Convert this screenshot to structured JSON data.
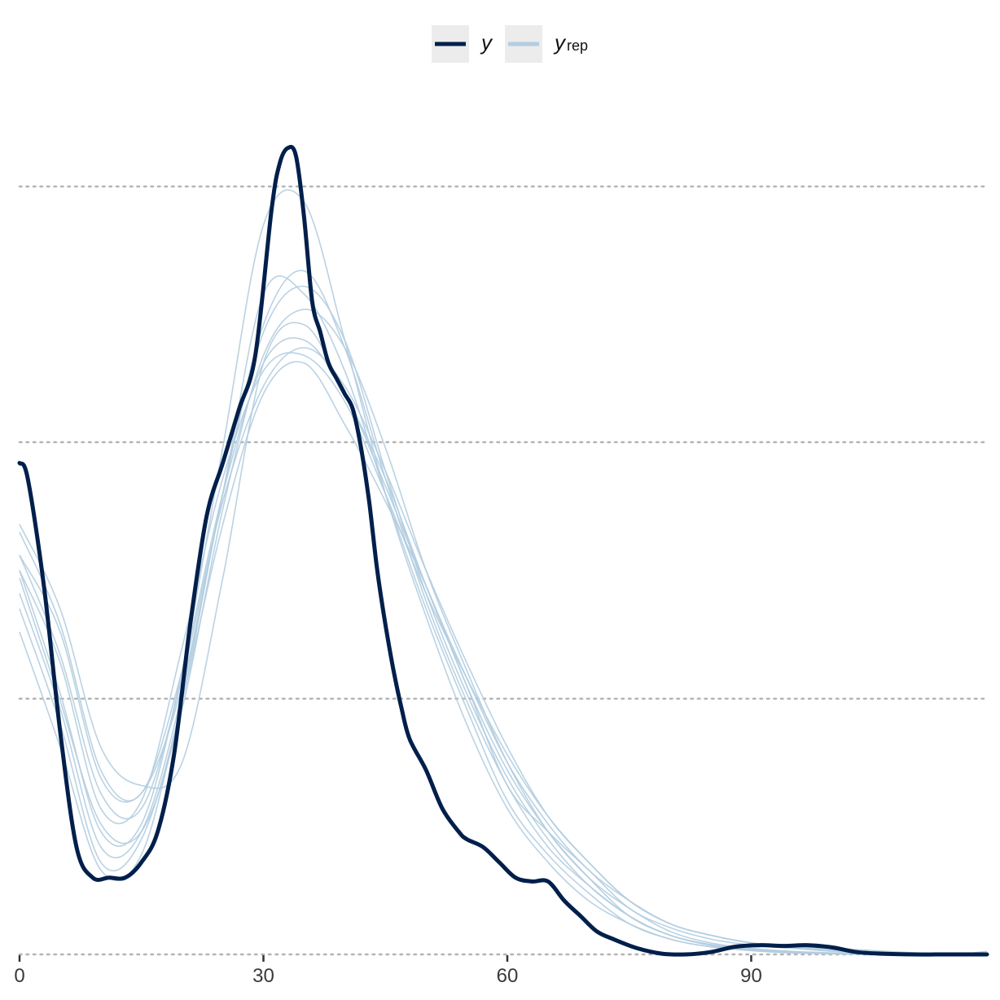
{
  "chart_data": {
    "type": "line",
    "title": "",
    "xlabel": "",
    "ylabel": "",
    "xlim": [
      0,
      119
    ],
    "x_ticks": [
      0,
      30,
      60,
      90
    ],
    "x_tick_labels": [
      "0",
      "30",
      "60",
      "90"
    ],
    "ylim": [
      0,
      1.05
    ],
    "y_gridlines": [
      0,
      0.333,
      0.667,
      1.0
    ],
    "grid": "horizontal dotted",
    "legend_position": "top",
    "colors": {
      "y": "#011f4b",
      "y_rep": "#b3cde0",
      "grid": "#b4b4b4",
      "legend_key_bg": "#ececec"
    },
    "legend": [
      {
        "key": "y",
        "label": "y",
        "sub": ""
      },
      {
        "key": "y_rep",
        "label": "y",
        "sub": "rep"
      }
    ],
    "series": [
      {
        "name": "y",
        "x": [
          0,
          1,
          3,
          5,
          7,
          9,
          11,
          13,
          15,
          17,
          19,
          21,
          23,
          25,
          27,
          29,
          31,
          32,
          33,
          34,
          35,
          36,
          37,
          38,
          39,
          40,
          41,
          42,
          43,
          44,
          45,
          46,
          47,
          48,
          50,
          52,
          54,
          55,
          57,
          59,
          61,
          63,
          65,
          67,
          69,
          71,
          73,
          76,
          79,
          82,
          85,
          88,
          91,
          94,
          97,
          100,
          103,
          106,
          110,
          114,
          119
        ],
        "y": [
          0.64,
          0.62,
          0.48,
          0.29,
          0.14,
          0.1,
          0.1,
          0.1,
          0.12,
          0.16,
          0.26,
          0.43,
          0.57,
          0.64,
          0.71,
          0.78,
          0.97,
          1.03,
          1.05,
          1.04,
          0.96,
          0.85,
          0.81,
          0.77,
          0.75,
          0.73,
          0.71,
          0.66,
          0.59,
          0.5,
          0.43,
          0.37,
          0.32,
          0.28,
          0.24,
          0.19,
          0.16,
          0.15,
          0.14,
          0.12,
          0.1,
          0.095,
          0.095,
          0.07,
          0.05,
          0.03,
          0.02,
          0.008,
          0.001,
          0,
          0.003,
          0.01,
          0.012,
          0.011,
          0.012,
          0.009,
          0.003,
          0.001,
          0,
          0,
          0
        ]
      },
      {
        "name": "",
        "x": [
          0,
          5,
          10,
          15,
          20,
          25,
          30,
          35,
          40,
          45,
          50,
          55,
          60,
          65,
          70,
          75,
          80,
          85,
          90,
          95,
          100,
          105,
          110,
          115,
          119
        ],
        "y": [
          0.56,
          0.45,
          0.27,
          0.22,
          0.25,
          0.49,
          0.77,
          0.82,
          0.73,
          0.62,
          0.48,
          0.35,
          0.22,
          0.16,
          0.11,
          0.06,
          0.035,
          0.02,
          0.012,
          0.008,
          0.004,
          0.002,
          0.001,
          0,
          0
        ]
      },
      {
        "name": "",
        "x": [
          0,
          5,
          10,
          15,
          20,
          25,
          30,
          35,
          40,
          45,
          50,
          55,
          60,
          65,
          70,
          75,
          80,
          85,
          90,
          95,
          100,
          105,
          110,
          115,
          119
        ],
        "y": [
          0.42,
          0.27,
          0.11,
          0.13,
          0.33,
          0.56,
          0.73,
          0.77,
          0.69,
          0.59,
          0.48,
          0.35,
          0.24,
          0.16,
          0.1,
          0.05,
          0.025,
          0.012,
          0.006,
          0.003,
          0.001,
          0,
          0,
          0,
          0
        ]
      },
      {
        "name": "",
        "x": [
          0,
          5,
          10,
          15,
          20,
          25,
          30,
          35,
          40,
          45,
          50,
          55,
          60,
          65,
          70,
          75,
          80,
          85,
          90,
          95,
          100,
          105,
          110,
          115,
          119
        ],
        "y": [
          0.52,
          0.42,
          0.23,
          0.21,
          0.35,
          0.6,
          0.86,
          0.86,
          0.76,
          0.6,
          0.45,
          0.32,
          0.2,
          0.13,
          0.08,
          0.04,
          0.02,
          0.01,
          0.005,
          0.002,
          0.001,
          0,
          0,
          0,
          0
        ]
      },
      {
        "name": "",
        "x": [
          0,
          5,
          10,
          15,
          20,
          25,
          30,
          35,
          40,
          45,
          50,
          55,
          60,
          65,
          70,
          75,
          80,
          85,
          90,
          95,
          100,
          105,
          110,
          115,
          119
        ],
        "y": [
          0.49,
          0.33,
          0.17,
          0.16,
          0.32,
          0.58,
          0.78,
          0.84,
          0.79,
          0.66,
          0.5,
          0.37,
          0.25,
          0.16,
          0.1,
          0.06,
          0.03,
          0.015,
          0.008,
          0.004,
          0.002,
          0.001,
          0,
          0,
          0
        ]
      },
      {
        "name": "",
        "x": [
          0,
          5,
          10,
          15,
          20,
          25,
          30,
          35,
          40,
          45,
          50,
          55,
          60,
          65,
          70,
          75,
          80,
          85,
          90,
          95,
          100,
          105,
          110,
          115,
          119
        ],
        "y": [
          0.5,
          0.34,
          0.16,
          0.17,
          0.37,
          0.66,
          0.95,
          0.98,
          0.8,
          0.6,
          0.44,
          0.3,
          0.19,
          0.12,
          0.07,
          0.04,
          0.02,
          0.01,
          0.005,
          0.002,
          0.001,
          0,
          0,
          0,
          0
        ]
      },
      {
        "name": "",
        "x": [
          0,
          5,
          10,
          15,
          20,
          25,
          30,
          35,
          40,
          45,
          50,
          55,
          60,
          65,
          70,
          75,
          80,
          85,
          90,
          95,
          100,
          105,
          110,
          115,
          119
        ],
        "y": [
          0.45,
          0.3,
          0.12,
          0.15,
          0.33,
          0.6,
          0.81,
          0.87,
          0.8,
          0.63,
          0.47,
          0.34,
          0.23,
          0.15,
          0.09,
          0.05,
          0.025,
          0.012,
          0.006,
          0.003,
          0.001,
          0,
          0,
          0,
          0
        ]
      },
      {
        "name": "",
        "x": [
          0,
          5,
          10,
          15,
          20,
          25,
          30,
          35,
          40,
          45,
          50,
          55,
          60,
          65,
          70,
          75,
          80,
          85,
          90,
          95,
          100,
          105,
          110,
          115,
          119
        ],
        "y": [
          0.5,
          0.38,
          0.19,
          0.2,
          0.4,
          0.62,
          0.76,
          0.78,
          0.72,
          0.6,
          0.47,
          0.36,
          0.26,
          0.18,
          0.12,
          0.07,
          0.04,
          0.025,
          0.015,
          0.009,
          0.005,
          0.003,
          0.001,
          0,
          0.004
        ]
      },
      {
        "name": "",
        "x": [
          0,
          5,
          10,
          15,
          20,
          25,
          30,
          35,
          40,
          45,
          50,
          55,
          60,
          65,
          70,
          75,
          80,
          85,
          90,
          95,
          100,
          105,
          110,
          115,
          119
        ],
        "y": [
          0.47,
          0.32,
          0.14,
          0.16,
          0.34,
          0.6,
          0.82,
          0.89,
          0.79,
          0.62,
          0.46,
          0.33,
          0.22,
          0.14,
          0.09,
          0.05,
          0.025,
          0.013,
          0.007,
          0.003,
          0.001,
          0,
          0,
          0,
          0
        ]
      },
      {
        "name": "",
        "x": [
          0,
          5,
          10,
          15,
          20,
          25,
          30,
          35,
          40,
          45,
          50,
          55,
          60,
          65,
          70,
          75,
          80,
          85,
          90,
          95,
          100,
          105,
          110,
          115,
          119
        ],
        "y": [
          0.52,
          0.39,
          0.21,
          0.19,
          0.36,
          0.59,
          0.74,
          0.79,
          0.74,
          0.63,
          0.5,
          0.38,
          0.27,
          0.18,
          0.12,
          0.07,
          0.04,
          0.025,
          0.015,
          0.01,
          0.006,
          0.003,
          0.001,
          0,
          0
        ]
      },
      {
        "name": "",
        "x": [
          0,
          5,
          10,
          15,
          20,
          25,
          30,
          35,
          40,
          45,
          50,
          55,
          60,
          65,
          70,
          75,
          80,
          85,
          90,
          95,
          100,
          105,
          110,
          115,
          119
        ],
        "y": [
          0.55,
          0.43,
          0.24,
          0.21,
          0.37,
          0.6,
          0.77,
          0.8,
          0.73,
          0.61,
          0.48,
          0.36,
          0.25,
          0.17,
          0.11,
          0.07,
          0.04,
          0.025,
          0.015,
          0.01,
          0.008,
          0.005,
          0.002,
          0,
          0
        ]
      }
    ]
  }
}
